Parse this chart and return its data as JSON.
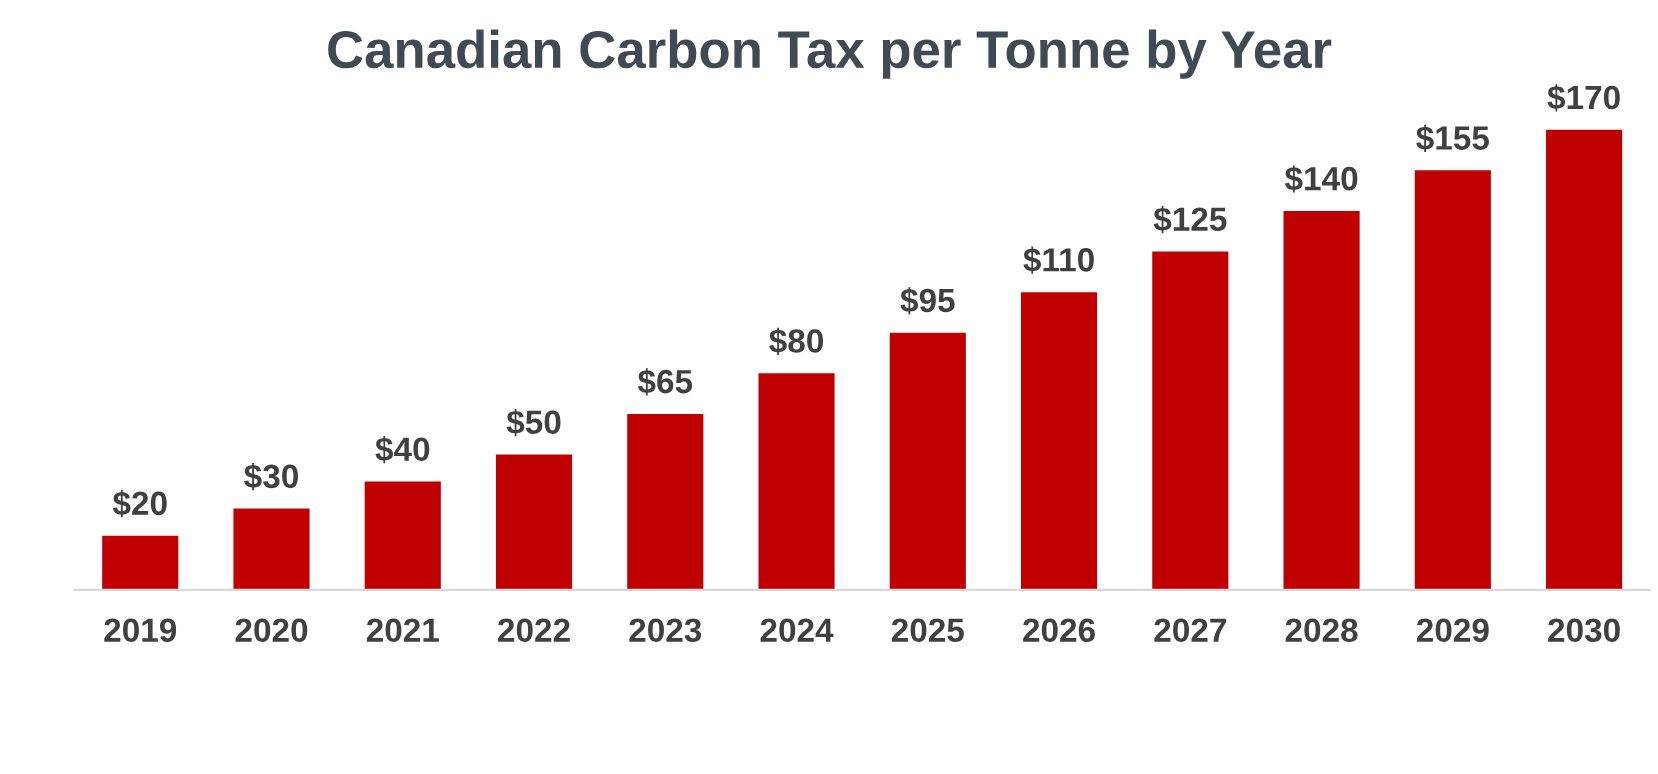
{
  "chart_data": {
    "type": "bar",
    "title": "Canadian Carbon Tax per Tonne by Year",
    "categories": [
      "2019",
      "2020",
      "2021",
      "2022",
      "2023",
      "2024",
      "2025",
      "2026",
      "2027",
      "2028",
      "2029",
      "2030"
    ],
    "values": [
      20,
      30,
      40,
      50,
      65,
      80,
      95,
      110,
      125,
      140,
      155,
      170
    ],
    "value_labels": [
      "$20",
      "$30",
      "$40",
      "$50",
      "$65",
      "$80",
      "$95",
      "$110",
      "$125",
      "$140",
      "$155",
      "$170"
    ],
    "color": "#c00000",
    "grid": false,
    "legend": false
  }
}
